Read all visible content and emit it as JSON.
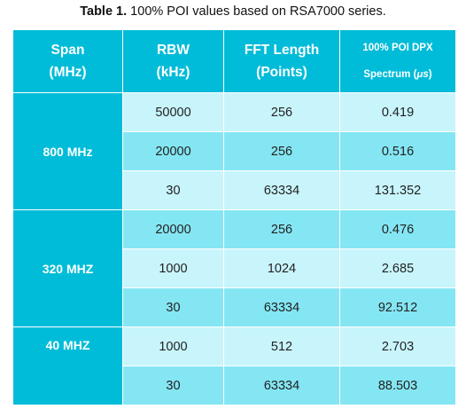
{
  "caption": {
    "prefix": "Table 1.",
    "text": " 100% POI values based on RSA7000 series."
  },
  "table": {
    "headers": [
      {
        "line1": "Span",
        "line2": "(MHz)"
      },
      {
        "line1": "RBW",
        "line2": "(kHz)"
      },
      {
        "line1": "FFT Length",
        "line2": "(Points)"
      },
      {
        "line1": "100% POI DPX",
        "line2_prefix": "Spectrum (",
        "line2_mu": "μs",
        "line2_suffix": ")"
      }
    ],
    "groups": [
      {
        "span": "800 MHz",
        "rows": [
          {
            "rbw": "50000",
            "fft": "256",
            "poi": "0.419"
          },
          {
            "rbw": "20000",
            "fft": "256",
            "poi": "0.516"
          },
          {
            "rbw": "30",
            "fft": "63334",
            "poi": "131.352"
          }
        ]
      },
      {
        "span": "320 MHZ",
        "rows": [
          {
            "rbw": "20000",
            "fft": "256",
            "poi": "0.476"
          },
          {
            "rbw": "1000",
            "fft": "1024",
            "poi": "2.685"
          },
          {
            "rbw": "30",
            "fft": "63334",
            "poi": "92.512"
          }
        ]
      },
      {
        "span": "40 MHZ",
        "rows": [
          {
            "rbw": "1000",
            "fft": "512",
            "poi": "2.703"
          },
          {
            "rbw": "30",
            "fft": "63334",
            "poi": "88.503"
          }
        ]
      }
    ]
  },
  "colors": {
    "header_bg": "#00bcd8",
    "row_dark": "#84e6f3",
    "row_light": "#c8f5fb"
  }
}
